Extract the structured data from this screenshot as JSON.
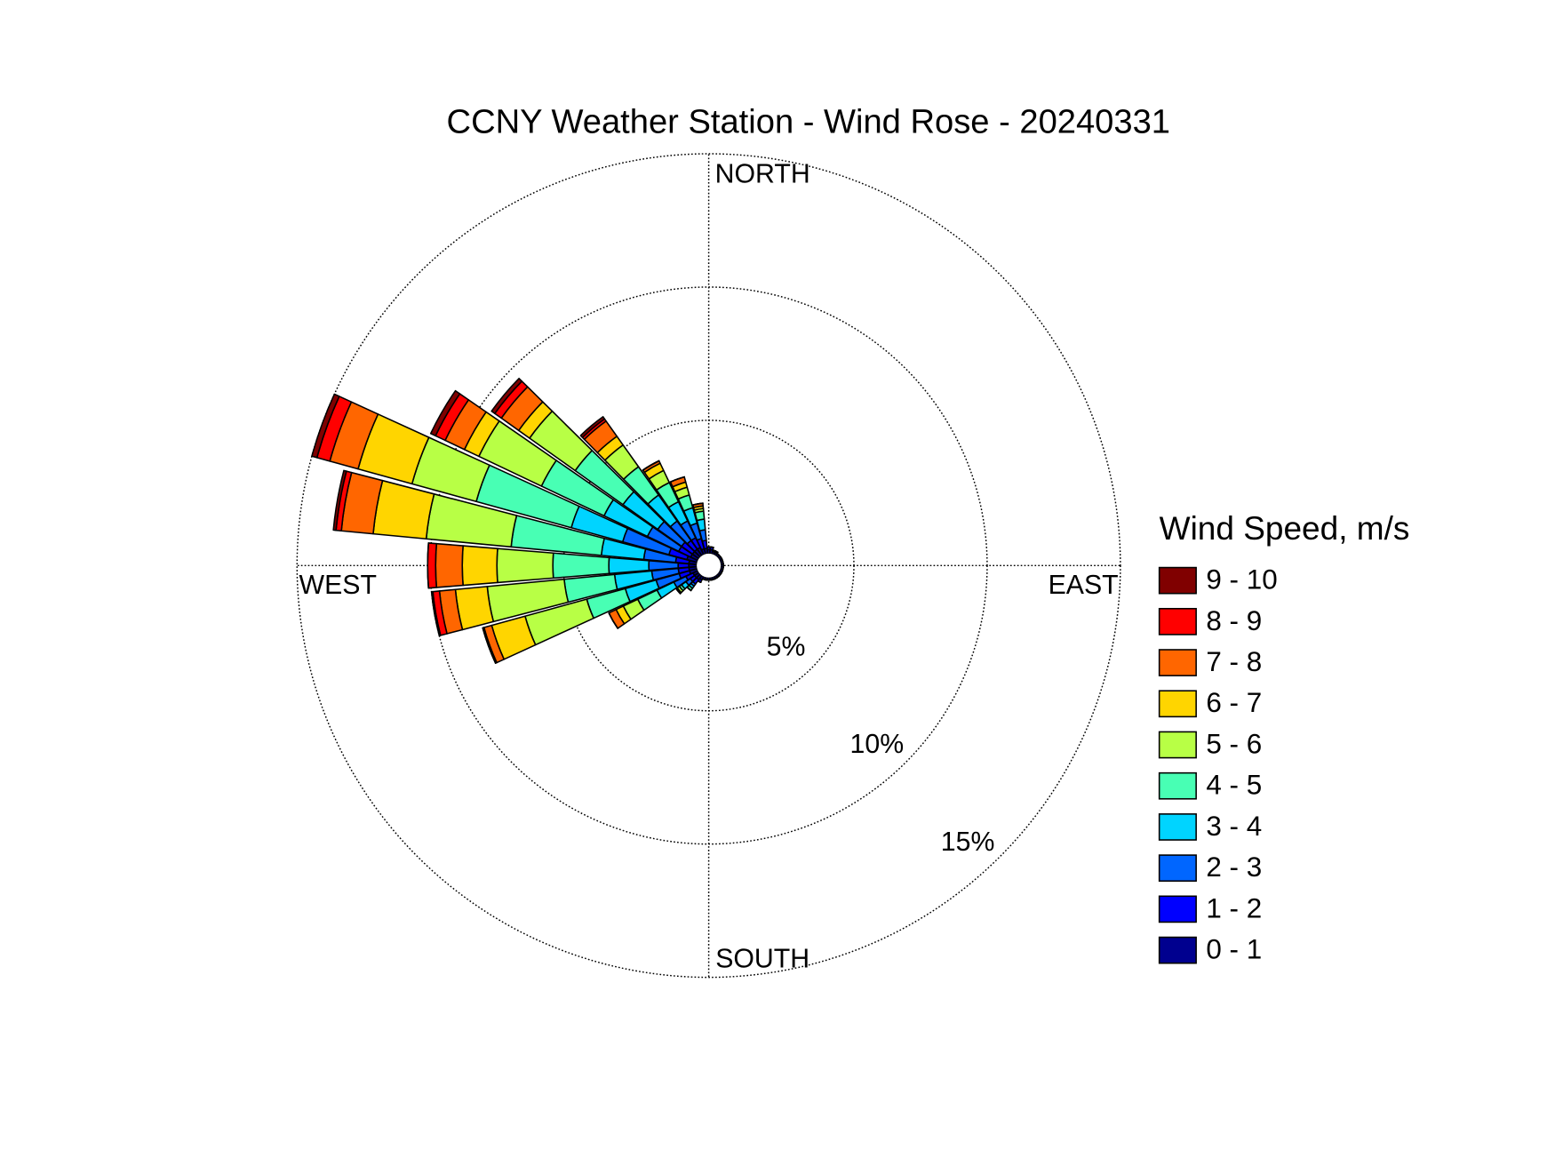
{
  "chart_data": {
    "type": "windrose",
    "title": "CCNY Weather Station - Wind Rose - 20240331",
    "legend_title": "Wind Speed, m/s",
    "direction_labels": {
      "north": "NORTH",
      "south": "SOUTH",
      "west": "WEST",
      "east": "EAST"
    },
    "directions": [
      0,
      10,
      20,
      30,
      40,
      50,
      60,
      70,
      80,
      90,
      100,
      110,
      120,
      130,
      140,
      150,
      160,
      170,
      180,
      190,
      200,
      210,
      220,
      230,
      240,
      250,
      260,
      270,
      280,
      290,
      300,
      310,
      320,
      330,
      340,
      350
    ],
    "rlim": [
      0,
      15
    ],
    "rticks": [
      {
        "value": 5,
        "label": "5%"
      },
      {
        "value": 10,
        "label": "10%"
      },
      {
        "value": 15,
        "label": "15%"
      }
    ],
    "legend_position": "right",
    "series": [
      {
        "name": "0 - 1",
        "color": "#00008f",
        "values": [
          0.15,
          0.15,
          0.1,
          0.1,
          0.1,
          0.1,
          0.1,
          0.1,
          0.1,
          0.1,
          0.1,
          0.1,
          0.1,
          0.1,
          0.1,
          0.1,
          0.1,
          0.1,
          0.1,
          0.1,
          0.1,
          0.15,
          0.2,
          0.2,
          0.2,
          0.3,
          0.3,
          0.3,
          0.3,
          0.4,
          0.3,
          0.3,
          0.3,
          0.3,
          0.2,
          0.2
        ]
      },
      {
        "name": "1 - 2",
        "color": "#0000ff",
        "values": [
          0.1,
          0.1,
          0.05,
          0.05,
          0,
          0,
          0,
          0,
          0,
          0,
          0,
          0,
          0,
          0,
          0,
          0,
          0,
          0,
          0,
          0,
          0,
          0.1,
          0.2,
          0.2,
          0.3,
          0.4,
          0.4,
          0.4,
          0.5,
          0.7,
          0.5,
          0.5,
          0.4,
          0.4,
          0.4,
          0.3
        ]
      },
      {
        "name": "2 - 3",
        "color": "#0066ff",
        "values": [
          0,
          0,
          0,
          0,
          0,
          0,
          0,
          0,
          0,
          0,
          0,
          0,
          0,
          0,
          0,
          0,
          0,
          0,
          0,
          0,
          0,
          0,
          0.1,
          0.2,
          0.5,
          0.9,
          1.0,
          1.1,
          1.2,
          1.8,
          1.3,
          1.1,
          0.9,
          0.7,
          0.6,
          0.4
        ]
      },
      {
        "name": "3 - 4",
        "color": "#00d4ff",
        "values": [
          0,
          0,
          0,
          0,
          0,
          0,
          0,
          0,
          0,
          0,
          0,
          0,
          0,
          0,
          0,
          0,
          0,
          0,
          0,
          0,
          0,
          0,
          0.1,
          0.2,
          0.7,
          1.2,
          1.4,
          1.5,
          1.6,
          2.0,
          1.8,
          1.6,
          1.2,
          0.8,
          0.6,
          0.4
        ]
      },
      {
        "name": "4 - 5",
        "color": "#48ffb4",
        "values": [
          0,
          0,
          0,
          0,
          0,
          0,
          0,
          0,
          0,
          0,
          0,
          0,
          0,
          0,
          0,
          0,
          0,
          0,
          0,
          0,
          0,
          0,
          0.1,
          0.1,
          0.8,
          1.5,
          1.9,
          2.1,
          3.4,
          3.7,
          2.6,
          2.2,
          1.3,
          0.8,
          0.5,
          0.3
        ]
      },
      {
        "name": "5 - 6",
        "color": "#b8ff45",
        "values": [
          0,
          0,
          0,
          0,
          0,
          0,
          0,
          0,
          0,
          0,
          0,
          0,
          0,
          0,
          0,
          0,
          0,
          0,
          0,
          0,
          0,
          0,
          0,
          0.1,
          0.6,
          2.4,
          2.9,
          2.1,
          3.2,
          2.5,
          2.6,
          2.1,
          1.0,
          0.5,
          0.3,
          0.1
        ]
      },
      {
        "name": "6 - 7",
        "color": "#ffd500",
        "values": [
          0,
          0,
          0,
          0,
          0,
          0,
          0,
          0,
          0,
          0,
          0,
          0,
          0,
          0,
          0,
          0,
          0,
          0,
          0,
          0,
          0,
          0,
          0,
          0.05,
          0.3,
          1.3,
          1.2,
          1.3,
          2.0,
          2.1,
          0.6,
          0.5,
          0.4,
          0.3,
          0.2,
          0.1
        ]
      },
      {
        "name": "7 - 8",
        "color": "#ff6600",
        "values": [
          0,
          0,
          0,
          0,
          0,
          0,
          0,
          0,
          0,
          0,
          0,
          0,
          0,
          0,
          0,
          0,
          0,
          0,
          0,
          0,
          0,
          0,
          0,
          0,
          0.3,
          0.3,
          0.6,
          1.0,
          1.2,
          1.1,
          0.8,
          0.8,
          0.7,
          0.1,
          0.2,
          0.1
        ]
      },
      {
        "name": "8 - 9",
        "color": "#ff0000",
        "values": [
          0,
          0,
          0,
          0,
          0,
          0,
          0,
          0,
          0,
          0,
          0,
          0,
          0,
          0,
          0,
          0,
          0,
          0,
          0,
          0,
          0,
          0,
          0,
          0,
          0,
          0.05,
          0.25,
          0.3,
          0.2,
          0.5,
          0.4,
          0.3,
          0.1,
          0,
          0,
          0
        ]
      },
      {
        "name": "9 - 10",
        "color": "#800000",
        "values": [
          0,
          0,
          0,
          0,
          0,
          0,
          0,
          0,
          0,
          0,
          0,
          0,
          0,
          0,
          0,
          0,
          0,
          0,
          0,
          0,
          0,
          0,
          0,
          0,
          0,
          0,
          0.05,
          0,
          0.1,
          0.2,
          0.2,
          0.15,
          0.1,
          0,
          0,
          0
        ]
      }
    ]
  }
}
